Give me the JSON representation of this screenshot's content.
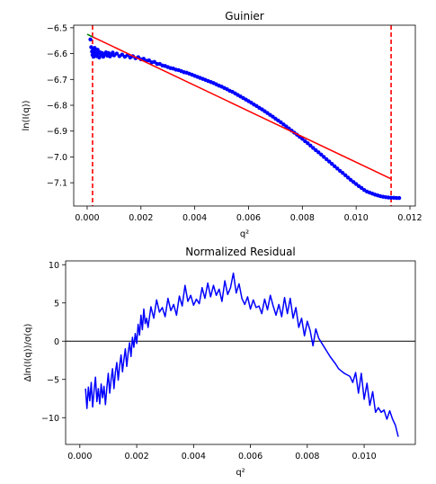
{
  "chart_data": [
    {
      "type": "scatter",
      "title": "Guinier",
      "xlabel": "q²",
      "ylabel": "ln(I(q))",
      "xlim": [
        -0.0005,
        0.0122
      ],
      "ylim": [
        -7.19,
        -6.49
      ],
      "xticks": [
        0.0,
        0.002,
        0.004,
        0.006,
        0.008,
        0.01,
        0.012
      ],
      "xtick_labels": [
        "0.000",
        "0.002",
        "0.004",
        "0.006",
        "0.008",
        "0.010",
        "0.012"
      ],
      "yticks": [
        -6.5,
        -6.6,
        -6.7,
        -6.8,
        -6.9,
        -7.0,
        -7.1
      ],
      "ytick_labels": [
        "−6.5",
        "−6.6",
        "−6.7",
        "−6.8",
        "−6.9",
        "−7.0",
        "−7.1"
      ],
      "colors": {
        "data": "#0000ff",
        "fit": "#ff0000",
        "extrapolation": "#008000",
        "range": "#ff0000"
      },
      "series": [
        {
          "name": "data",
          "style": "points",
          "points": [
            [
              0.00012,
              -6.545
            ],
            [
              0.00015,
              -6.575
            ],
            [
              0.00018,
              -6.592
            ],
            [
              0.0002,
              -6.605
            ],
            [
              0.00022,
              -6.585
            ],
            [
              0.00024,
              -6.612
            ],
            [
              0.00026,
              -6.595
            ],
            [
              0.00028,
              -6.578
            ],
            [
              0.0003,
              -6.602
            ],
            [
              0.00033,
              -6.59
            ],
            [
              0.00036,
              -6.61
            ],
            [
              0.00039,
              -6.585
            ],
            [
              0.00042,
              -6.6
            ],
            [
              0.00045,
              -6.615
            ],
            [
              0.00048,
              -6.595
            ],
            [
              0.00052,
              -6.605
            ],
            [
              0.00056,
              -6.598
            ],
            [
              0.0006,
              -6.612
            ],
            [
              0.00065,
              -6.603
            ],
            [
              0.0007,
              -6.595
            ],
            [
              0.00075,
              -6.608
            ],
            [
              0.0008,
              -6.598
            ],
            [
              0.00085,
              -6.611
            ],
            [
              0.0009,
              -6.604
            ],
            [
              0.00095,
              -6.596
            ],
            [
              0.001,
              -6.607
            ],
            [
              0.0011,
              -6.6
            ],
            [
              0.0012,
              -6.61
            ],
            [
              0.0013,
              -6.604
            ],
            [
              0.0014,
              -6.612
            ],
            [
              0.0015,
              -6.606
            ],
            [
              0.0016,
              -6.615
            ],
            [
              0.0017,
              -6.61
            ],
            [
              0.0018,
              -6.618
            ],
            [
              0.0019,
              -6.614
            ],
            [
              0.002,
              -6.622
            ],
            [
              0.0021,
              -6.62
            ],
            [
              0.0022,
              -6.628
            ],
            [
              0.0023,
              -6.626
            ],
            [
              0.0024,
              -6.634
            ],
            [
              0.0025,
              -6.632
            ],
            [
              0.0026,
              -6.64
            ],
            [
              0.0027,
              -6.64
            ],
            [
              0.0028,
              -6.646
            ],
            [
              0.0029,
              -6.648
            ],
            [
              0.003,
              -6.652
            ],
            [
              0.0031,
              -6.656
            ],
            [
              0.0032,
              -6.658
            ],
            [
              0.0033,
              -6.662
            ],
            [
              0.0034,
              -6.664
            ],
            [
              0.0035,
              -6.668
            ],
            [
              0.0036,
              -6.672
            ],
            [
              0.0037,
              -6.674
            ],
            [
              0.0038,
              -6.678
            ],
            [
              0.0039,
              -6.682
            ],
            [
              0.004,
              -6.686
            ],
            [
              0.0041,
              -6.69
            ],
            [
              0.0042,
              -6.694
            ],
            [
              0.0043,
              -6.698
            ],
            [
              0.0044,
              -6.702
            ],
            [
              0.0045,
              -6.706
            ],
            [
              0.0046,
              -6.71
            ],
            [
              0.0047,
              -6.714
            ],
            [
              0.0048,
              -6.719
            ],
            [
              0.0049,
              -6.724
            ],
            [
              0.005,
              -6.728
            ],
            [
              0.0051,
              -6.733
            ],
            [
              0.0052,
              -6.738
            ],
            [
              0.0053,
              -6.744
            ],
            [
              0.0054,
              -6.748
            ],
            [
              0.0055,
              -6.754
            ],
            [
              0.0056,
              -6.76
            ],
            [
              0.0057,
              -6.766
            ],
            [
              0.0058,
              -6.772
            ],
            [
              0.0059,
              -6.778
            ],
            [
              0.006,
              -6.784
            ],
            [
              0.0061,
              -6.79
            ],
            [
              0.0062,
              -6.797
            ],
            [
              0.0063,
              -6.803
            ],
            [
              0.0064,
              -6.81
            ],
            [
              0.0065,
              -6.816
            ],
            [
              0.0066,
              -6.823
            ],
            [
              0.0067,
              -6.83
            ],
            [
              0.0068,
              -6.837
            ],
            [
              0.0069,
              -6.844
            ],
            [
              0.007,
              -6.852
            ],
            [
              0.0071,
              -6.859
            ],
            [
              0.0072,
              -6.866
            ],
            [
              0.0073,
              -6.874
            ],
            [
              0.0074,
              -6.882
            ],
            [
              0.0075,
              -6.89
            ],
            [
              0.0076,
              -6.898
            ],
            [
              0.0077,
              -6.906
            ],
            [
              0.0078,
              -6.914
            ],
            [
              0.0079,
              -6.922
            ],
            [
              0.008,
              -6.93
            ],
            [
              0.0081,
              -6.939
            ],
            [
              0.0082,
              -6.947
            ],
            [
              0.0083,
              -6.956
            ],
            [
              0.0084,
              -6.965
            ],
            [
              0.0085,
              -6.974
            ],
            [
              0.0086,
              -6.982
            ],
            [
              0.0087,
              -6.991
            ],
            [
              0.0088,
              -7.0
            ],
            [
              0.0089,
              -7.009
            ],
            [
              0.009,
              -7.018
            ],
            [
              0.0091,
              -7.027
            ],
            [
              0.0092,
              -7.036
            ],
            [
              0.0093,
              -7.045
            ],
            [
              0.0094,
              -7.054
            ],
            [
              0.0095,
              -7.062
            ],
            [
              0.0096,
              -7.071
            ],
            [
              0.0097,
              -7.08
            ],
            [
              0.0098,
              -7.089
            ],
            [
              0.0099,
              -7.097
            ],
            [
              0.01,
              -7.105
            ],
            [
              0.0101,
              -7.113
            ],
            [
              0.0102,
              -7.12
            ],
            [
              0.0103,
              -7.128
            ],
            [
              0.0104,
              -7.134
            ],
            [
              0.0105,
              -7.138
            ],
            [
              0.0106,
              -7.142
            ],
            [
              0.0107,
              -7.146
            ],
            [
              0.0108,
              -7.149
            ],
            [
              0.0109,
              -7.152
            ],
            [
              0.011,
              -7.154
            ],
            [
              0.0111,
              -7.156
            ],
            [
              0.0112,
              -7.157
            ],
            [
              0.0113,
              -7.158
            ],
            [
              0.0114,
              -7.158
            ],
            [
              0.0115,
              -7.159
            ],
            [
              0.0116,
              -7.159
            ]
          ]
        },
        {
          "name": "fit",
          "style": "line",
          "points": [
            [
              0.0002,
              -6.535
            ],
            [
              0.0113,
              -7.085
            ]
          ]
        },
        {
          "name": "extrapolation",
          "style": "line",
          "points": [
            [
              0.0,
              -6.525
            ],
            [
              0.0002,
              -6.535
            ]
          ]
        }
      ],
      "vlines": [
        0.0002,
        0.0113
      ]
    },
    {
      "type": "line",
      "title": "Normalized Residual",
      "xlabel": "q²",
      "ylabel": "Δln(I(q))/σ(q)",
      "xlim": [
        -0.0005,
        0.0118
      ],
      "ylim": [
        -13.5,
        10.5
      ],
      "xticks": [
        0.0,
        0.002,
        0.004,
        0.006,
        0.008,
        0.01
      ],
      "xtick_labels": [
        "0.000",
        "0.002",
        "0.004",
        "0.006",
        "0.008",
        "0.010"
      ],
      "yticks": [
        10,
        5,
        0,
        -5,
        -10
      ],
      "ytick_labels": [
        "10",
        "5",
        "0",
        "−5",
        "−10"
      ],
      "hline": 0,
      "colors": {
        "line": "#0000ff",
        "zero": "#000000"
      },
      "series": [
        {
          "name": "residual",
          "x": [
            0.0002,
            0.00025,
            0.0003,
            0.00035,
            0.0004,
            0.00045,
            0.0005,
            0.00055,
            0.0006,
            0.00065,
            0.0007,
            0.00075,
            0.0008,
            0.00085,
            0.0009,
            0.00095,
            0.001,
            0.00105,
            0.0011,
            0.00115,
            0.0012,
            0.00125,
            0.0013,
            0.00135,
            0.0014,
            0.00145,
            0.0015,
            0.00155,
            0.0016,
            0.00165,
            0.0017,
            0.00175,
            0.0018,
            0.00185,
            0.0019,
            0.00195,
            0.002,
            0.00205,
            0.0021,
            0.00215,
            0.0022,
            0.00225,
            0.0023,
            0.00235,
            0.0024,
            0.0025,
            0.0026,
            0.0027,
            0.0028,
            0.0029,
            0.003,
            0.0031,
            0.0032,
            0.0033,
            0.0034,
            0.0035,
            0.0036,
            0.0037,
            0.0038,
            0.0039,
            0.004,
            0.0041,
            0.0042,
            0.0043,
            0.0044,
            0.0045,
            0.0046,
            0.0047,
            0.0048,
            0.0049,
            0.005,
            0.0051,
            0.0052,
            0.0053,
            0.0054,
            0.0055,
            0.0056,
            0.0057,
            0.0058,
            0.0059,
            0.006,
            0.0061,
            0.0062,
            0.0063,
            0.0064,
            0.0065,
            0.0066,
            0.0067,
            0.0068,
            0.0069,
            0.007,
            0.0071,
            0.0072,
            0.0073,
            0.0074,
            0.0075,
            0.0076,
            0.0077,
            0.0078,
            0.0079,
            0.008,
            0.0081,
            0.0082,
            0.0083,
            0.0084,
            0.0085,
            0.0086,
            0.0087,
            0.0088,
            0.0089,
            0.009,
            0.0091,
            0.0092,
            0.0093,
            0.0094,
            0.0095,
            0.0096,
            0.0097,
            0.0098,
            0.0099,
            0.01,
            0.0101,
            0.0102,
            0.0103,
            0.0104,
            0.0105,
            0.0106,
            0.0107,
            0.0108,
            0.0109,
            0.011,
            0.0111,
            0.0112
          ],
          "values": [
            -6.2,
            -8.8,
            -6.0,
            -7.8,
            -5.4,
            -8.6,
            -6.5,
            -4.7,
            -7.9,
            -6.2,
            -8.2,
            -5.6,
            -7.4,
            -5.9,
            -8.3,
            -6.1,
            -4.2,
            -6.8,
            -5.0,
            -3.6,
            -6.2,
            -4.1,
            -2.8,
            -5.1,
            -3.2,
            -1.8,
            -4.0,
            -2.4,
            -1.0,
            -3.3,
            -1.5,
            -0.2,
            -2.0,
            0.5,
            -0.8,
            1.0,
            -0.3,
            2.2,
            0.8,
            3.4,
            1.5,
            4.2,
            2.3,
            3.0,
            1.8,
            4.5,
            3.0,
            5.4,
            3.8,
            4.4,
            3.2,
            5.6,
            4.0,
            4.8,
            3.4,
            5.9,
            4.6,
            7.3,
            5.2,
            6.0,
            4.7,
            5.5,
            4.9,
            7.0,
            5.6,
            7.6,
            5.8,
            7.3,
            6.0,
            6.8,
            5.2,
            7.9,
            6.1,
            7.0,
            8.9,
            6.3,
            7.5,
            5.6,
            4.8,
            5.8,
            4.2,
            5.4,
            4.4,
            4.6,
            3.6,
            5.5,
            4.1,
            6.0,
            4.6,
            3.4,
            4.8,
            3.2,
            5.7,
            3.6,
            5.6,
            3.0,
            4.4,
            1.8,
            3.0,
            0.7,
            2.6,
            1.4,
            -0.6,
            1.6,
            0.4,
            -0.2,
            -0.8,
            -1.4,
            -2.0,
            -2.5,
            -3.0,
            -3.6,
            -3.9,
            -4.2,
            -4.4,
            -4.6,
            -5.4,
            -4.1,
            -6.8,
            -4.2,
            -7.6,
            -5.5,
            -8.4,
            -6.6,
            -9.3,
            -8.7,
            -9.3,
            -9.0,
            -10.2,
            -9.1,
            -10.2,
            -11.0,
            -12.5
          ]
        }
      ]
    }
  ]
}
